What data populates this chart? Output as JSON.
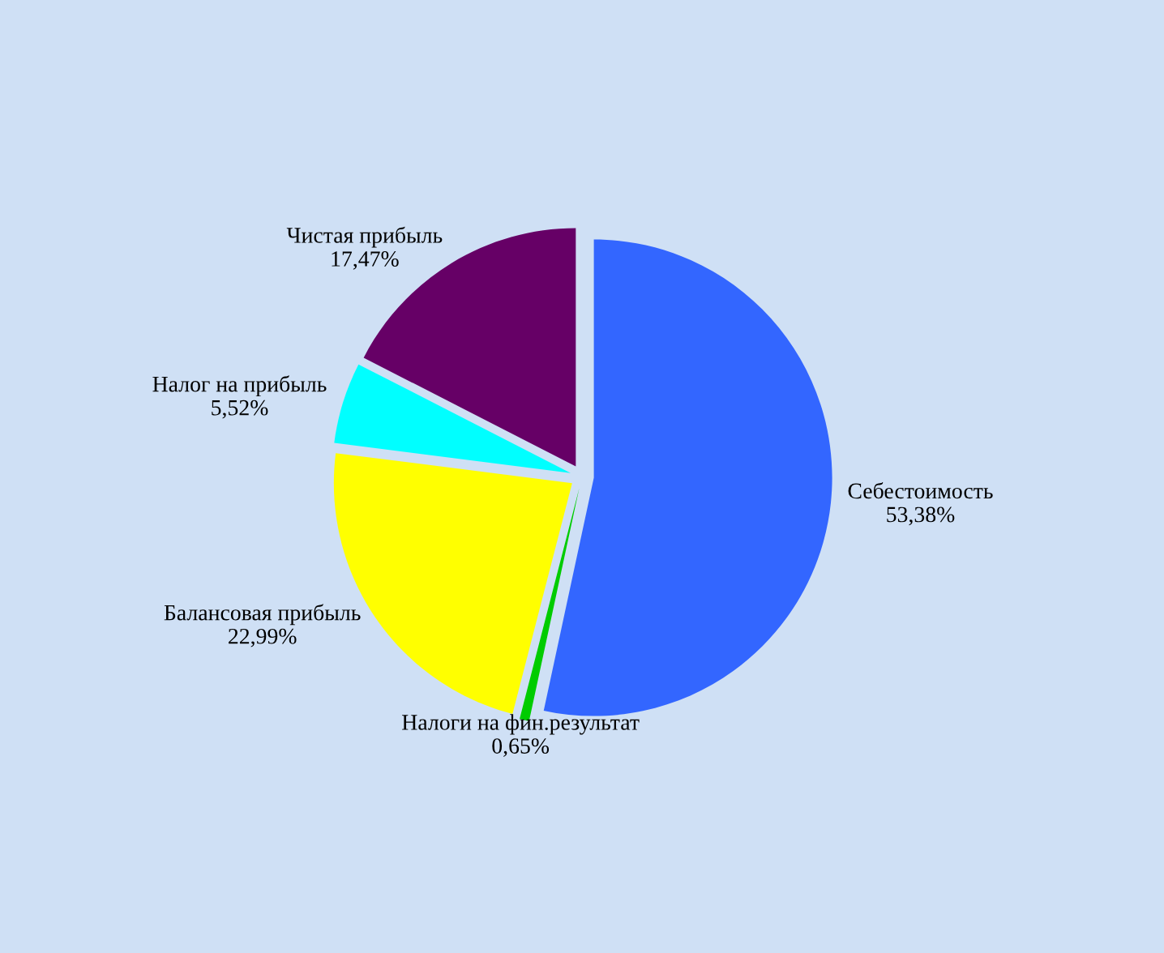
{
  "chart_data": {
    "type": "pie",
    "categories": [
      "Себестоимость",
      "Налоги на фин.результат",
      "Балансовая прибыль",
      "Налог на прибыль",
      "Чистая прибыль"
    ],
    "values": [
      53.38,
      0.65,
      22.99,
      5.52,
      17.47
    ],
    "colors": [
      "#3366ff",
      "#00cc00",
      "#ffff00",
      "#00ffff",
      "#660066"
    ],
    "value_labels": [
      "53,38%",
      "0,65%",
      "22,99%",
      "5,52%",
      "17,47%"
    ]
  }
}
